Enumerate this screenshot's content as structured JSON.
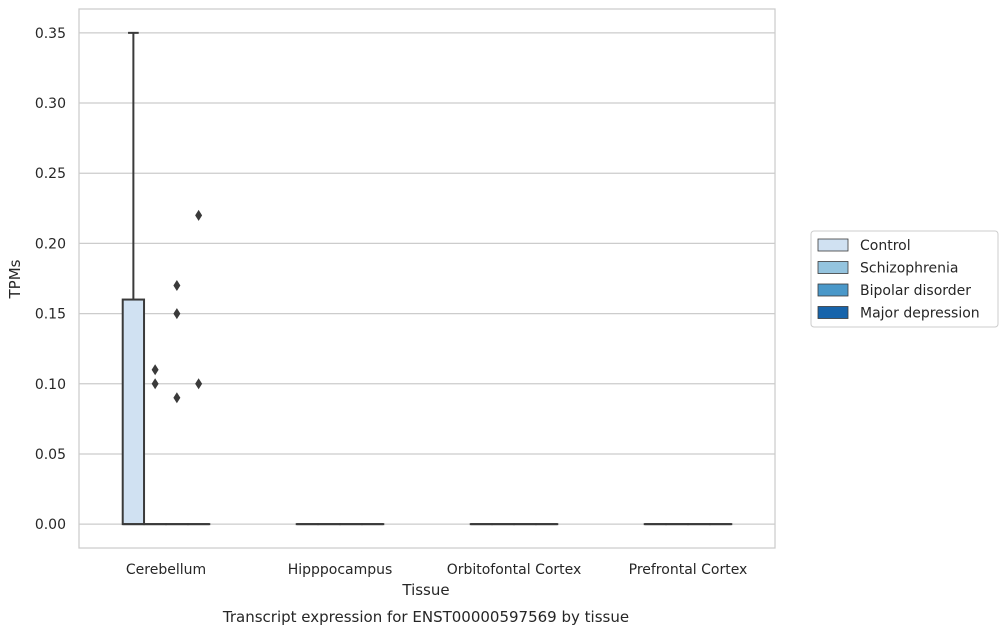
{
  "chart_data": {
    "type": "box",
    "caption": "Transcript expression for ENST00000597569 by tissue",
    "xlabel": "Tissue",
    "ylabel": "TPMs",
    "ylim": [
      -0.017,
      0.367
    ],
    "yticks": [
      0.0,
      0.05,
      0.1,
      0.15,
      0.2,
      0.25,
      0.3,
      0.35
    ],
    "ytick_labels": [
      "0.00",
      "0.05",
      "0.10",
      "0.15",
      "0.20",
      "0.25",
      "0.30",
      "0.35"
    ],
    "grid": true,
    "legend_position": "right",
    "categories": [
      "Cerebellum",
      "Hipppocampus",
      "Orbitofontal Cortex",
      "Prefrontal Cortex"
    ],
    "series": [
      {
        "name": "Control",
        "color": "#d0e1f2",
        "boxes": [
          {
            "category": "Cerebellum",
            "q1": 0.0,
            "median": 0.0,
            "q3": 0.16,
            "whisker_low": 0.0,
            "whisker_high": 0.35,
            "outliers": []
          },
          {
            "category": "Hipppocampus",
            "q1": 0.0,
            "median": 0.0,
            "q3": 0.0,
            "whisker_low": 0.0,
            "whisker_high": 0.0,
            "outliers": []
          },
          {
            "category": "Orbitofontal Cortex",
            "q1": 0.0,
            "median": 0.0,
            "q3": 0.0,
            "whisker_low": 0.0,
            "whisker_high": 0.0,
            "outliers": []
          },
          {
            "category": "Prefrontal Cortex",
            "q1": 0.0,
            "median": 0.0,
            "q3": 0.0,
            "whisker_low": 0.0,
            "whisker_high": 0.0,
            "outliers": []
          }
        ]
      },
      {
        "name": "Schizophrenia",
        "color": "#94c4df",
        "boxes": [
          {
            "category": "Cerebellum",
            "q1": 0.0,
            "median": 0.0,
            "q3": 0.0,
            "whisker_low": 0.0,
            "whisker_high": 0.0,
            "outliers": [
              0.11,
              0.1
            ]
          },
          {
            "category": "Hipppocampus",
            "q1": 0.0,
            "median": 0.0,
            "q3": 0.0,
            "whisker_low": 0.0,
            "whisker_high": 0.0,
            "outliers": []
          },
          {
            "category": "Orbitofontal Cortex",
            "q1": 0.0,
            "median": 0.0,
            "q3": 0.0,
            "whisker_low": 0.0,
            "whisker_high": 0.0,
            "outliers": []
          },
          {
            "category": "Prefrontal Cortex",
            "q1": 0.0,
            "median": 0.0,
            "q3": 0.0,
            "whisker_low": 0.0,
            "whisker_high": 0.0,
            "outliers": []
          }
        ]
      },
      {
        "name": "Bipolar disorder",
        "color": "#4a98c9",
        "boxes": [
          {
            "category": "Cerebellum",
            "q1": 0.0,
            "median": 0.0,
            "q3": 0.0,
            "whisker_low": 0.0,
            "whisker_high": 0.0,
            "outliers": [
              0.17,
              0.15,
              0.09
            ]
          },
          {
            "category": "Hipppocampus",
            "q1": 0.0,
            "median": 0.0,
            "q3": 0.0,
            "whisker_low": 0.0,
            "whisker_high": 0.0,
            "outliers": []
          },
          {
            "category": "Orbitofontal Cortex",
            "q1": 0.0,
            "median": 0.0,
            "q3": 0.0,
            "whisker_low": 0.0,
            "whisker_high": 0.0,
            "outliers": []
          },
          {
            "category": "Prefrontal Cortex",
            "q1": 0.0,
            "median": 0.0,
            "q3": 0.0,
            "whisker_low": 0.0,
            "whisker_high": 0.0,
            "outliers": []
          }
        ]
      },
      {
        "name": "Major depression",
        "color": "#1764ab",
        "boxes": [
          {
            "category": "Cerebellum",
            "q1": 0.0,
            "median": 0.0,
            "q3": 0.0,
            "whisker_low": 0.0,
            "whisker_high": 0.0,
            "outliers": [
              0.22,
              0.1
            ]
          },
          {
            "category": "Hipppocampus",
            "q1": 0.0,
            "median": 0.0,
            "q3": 0.0,
            "whisker_low": 0.0,
            "whisker_high": 0.0,
            "outliers": []
          },
          {
            "category": "Orbitofontal Cortex",
            "q1": 0.0,
            "median": 0.0,
            "q3": 0.0,
            "whisker_low": 0.0,
            "whisker_high": 0.0,
            "outliers": []
          },
          {
            "category": "Prefrontal Cortex",
            "q1": 0.0,
            "median": 0.0,
            "q3": 0.0,
            "whisker_low": 0.0,
            "whisker_high": 0.0,
            "outliers": []
          }
        ]
      }
    ]
  }
}
